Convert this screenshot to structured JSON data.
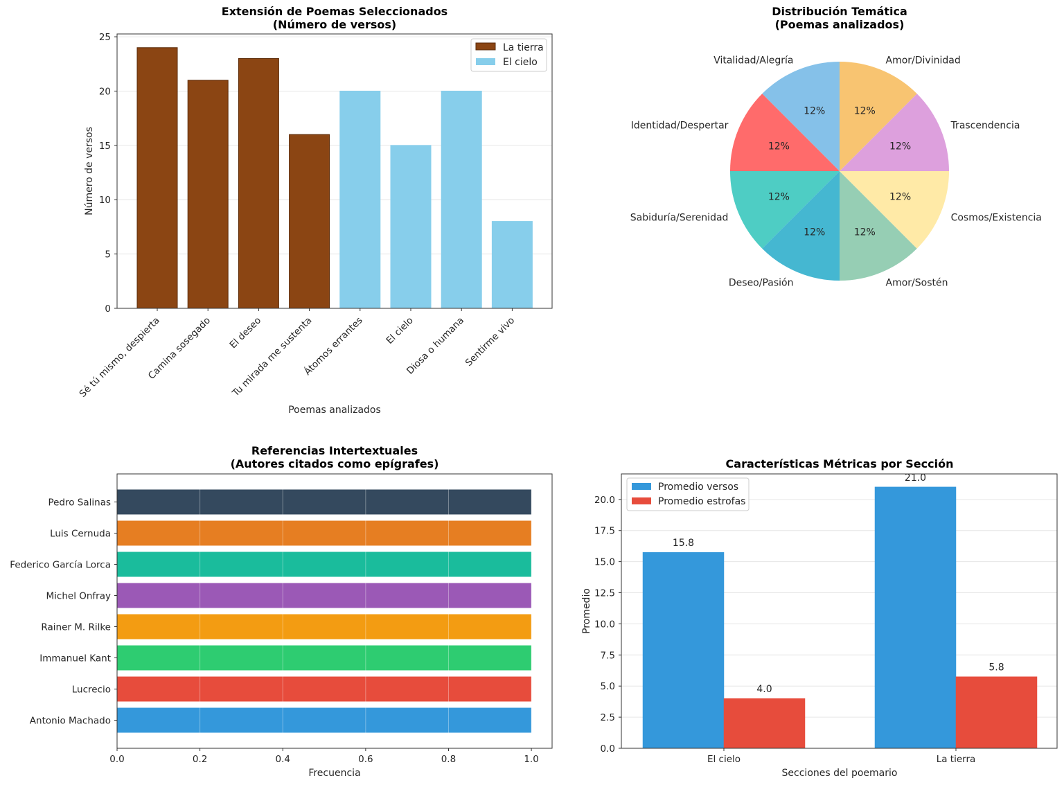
{
  "chart_data": [
    {
      "type": "bar",
      "title": "Extensión de Poemas Seleccionados",
      "subtitle": "(Número de versos)",
      "xlabel": "Poemas analizados",
      "ylabel": "Número de versos",
      "ylim": [
        0,
        25
      ],
      "yticks": [
        "0",
        "5",
        "10",
        "15",
        "20",
        "25"
      ],
      "grid": true,
      "legend_position": "top-right",
      "categories": [
        "Sé tú mismo, despierta",
        "Camina sosegado",
        "El deseo",
        "Tu mirada me sustenta",
        "Átomos errantes",
        "El cielo",
        "Diosa o humana",
        "Sentirme vivo"
      ],
      "values": [
        24,
        21,
        23,
        16,
        20,
        15,
        20,
        8
      ],
      "groups": [
        "La tierra",
        "La tierra",
        "La tierra",
        "La tierra",
        "El cielo",
        "El cielo",
        "El cielo",
        "El cielo"
      ],
      "series": [
        {
          "name": "La tierra",
          "color": "#8b4513"
        },
        {
          "name": "El cielo",
          "color": "#87ceeb"
        }
      ]
    },
    {
      "type": "pie",
      "title": "Distribución Temática",
      "subtitle": "(Poemas analizados)",
      "labels": [
        "Vitalidad/Alegría",
        "Identidad/Despertar",
        "Sabiduría/Serenidad",
        "Deseo/Pasión",
        "Amor/Sostén",
        "Cosmos/Existencia",
        "Trascendencia",
        "Amor/Divinidad"
      ],
      "values": [
        1,
        1,
        1,
        1,
        1,
        1,
        1,
        1
      ],
      "pct_labels": [
        "12%",
        "12%",
        "12%",
        "12%",
        "12%",
        "12%",
        "12%",
        "12%"
      ],
      "colors": [
        "#85c1e9",
        "#ff6b6b",
        "#4ecdc4",
        "#45b7d1",
        "#96ceb4",
        "#ffeaa7",
        "#dda0dd",
        "#f8c471"
      ]
    },
    {
      "type": "bar",
      "orientation": "horizontal",
      "title": "Referencias Intertextuales",
      "subtitle": "(Autores citados como epígrafes)",
      "xlabel": "Frecuencia",
      "ylabel": "",
      "xlim": [
        0,
        1.0
      ],
      "xticks": [
        "0.0",
        "0.2",
        "0.4",
        "0.6",
        "0.8",
        "1.0"
      ],
      "grid": true,
      "categories": [
        "Antonio Machado",
        "Lucrecio",
        "Immanuel Kant",
        "Rainer M. Rilke",
        "Michel Onfray",
        "Federico García Lorca",
        "Luis Cernuda",
        "Pedro Salinas"
      ],
      "values": [
        1,
        1,
        1,
        1,
        1,
        1,
        1,
        1
      ],
      "colors": [
        "#3498db",
        "#e74c3c",
        "#2ecc71",
        "#f39c12",
        "#9b59b6",
        "#1abc9c",
        "#e67e22",
        "#34495e"
      ]
    },
    {
      "type": "bar",
      "title": "Características Métricas por Sección",
      "xlabel": "Secciones del poemario",
      "ylabel": "Promedio",
      "ylim": [
        0,
        22.05
      ],
      "yticks": [
        "0.0",
        "2.5",
        "5.0",
        "7.5",
        "10.0",
        "12.5",
        "15.0",
        "17.5",
        "20.0"
      ],
      "grid": true,
      "legend_position": "top-left",
      "categories": [
        "El cielo",
        "La tierra"
      ],
      "series": [
        {
          "name": "Promedio versos",
          "values": [
            15.75,
            21.0
          ],
          "labels": [
            "15.8",
            "21.0"
          ],
          "color": "#3498db"
        },
        {
          "name": "Promedio estrofas",
          "values": [
            4.0,
            5.75
          ],
          "labels": [
            "4.0",
            "5.8"
          ],
          "color": "#e74c3c"
        }
      ]
    }
  ]
}
